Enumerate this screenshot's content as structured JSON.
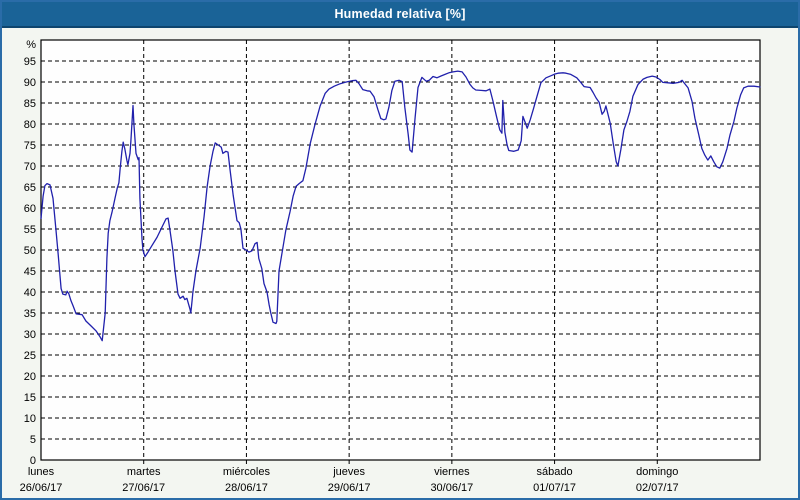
{
  "title": "Humedad relativa [%]",
  "colors": {
    "header_bg": "#1a6397",
    "header_border": "#0e456e",
    "outer_border": "#2a6ca8",
    "page_bg": "#f3f6f1",
    "plot_bg": "#fefefe",
    "grid": "#000000",
    "axis": "#000000",
    "line": "#2121ac",
    "title_text": "#ffffff",
    "label_text": "#000000"
  },
  "chart_data": {
    "type": "line",
    "title": "Humedad relativa [%]",
    "ylabel": "%",
    "ylim": [
      0,
      100
    ],
    "y_ticks": [
      0,
      5,
      10,
      15,
      20,
      25,
      30,
      35,
      40,
      45,
      50,
      55,
      60,
      65,
      70,
      75,
      80,
      85,
      90,
      95
    ],
    "grid": "dashed",
    "legend": "none",
    "x_axis": {
      "unit": "hours_from_start",
      "range": [
        0,
        168
      ],
      "hours_per_day": 24
    },
    "days": [
      {
        "name": "lunes",
        "date": "26/06/17"
      },
      {
        "name": "martes",
        "date": "27/06/17"
      },
      {
        "name": "miércoles",
        "date": "28/06/17"
      },
      {
        "name": "jueves",
        "date": "29/06/17"
      },
      {
        "name": "viernes",
        "date": "30/06/17"
      },
      {
        "name": "sábado",
        "date": "01/07/17"
      },
      {
        "name": "domingo",
        "date": "02/07/17"
      }
    ],
    "points": [
      [
        0,
        57.5
      ],
      [
        0.5,
        62.8
      ],
      [
        0.9,
        65.3
      ],
      [
        1.4,
        65.8
      ],
      [
        2.1,
        65.5
      ],
      [
        2.8,
        62.3
      ],
      [
        3.5,
        54.7
      ],
      [
        4,
        49.2
      ],
      [
        4.4,
        44.4
      ],
      [
        4.7,
        40.8
      ],
      [
        5.1,
        39.5
      ],
      [
        5.8,
        39.3
      ],
      [
        6.1,
        40.2
      ],
      [
        6.5,
        39.6
      ],
      [
        7,
        37.9
      ],
      [
        7.5,
        36.7
      ],
      [
        8.2,
        34.8
      ],
      [
        9.6,
        34.6
      ],
      [
        10.5,
        33.1
      ],
      [
        11.7,
        31.9
      ],
      [
        12.9,
        30.7
      ],
      [
        13.8,
        29.3
      ],
      [
        14.3,
        28.4
      ],
      [
        15,
        35
      ],
      [
        15.4,
        48
      ],
      [
        15.7,
        54
      ],
      [
        16.1,
        57
      ],
      [
        16.6,
        59
      ],
      [
        17.3,
        62.3
      ],
      [
        17.8,
        64.7
      ],
      [
        18.2,
        66
      ],
      [
        18.5,
        69.5
      ],
      [
        18.9,
        73.5
      ],
      [
        19.2,
        75.7
      ],
      [
        19.6,
        74
      ],
      [
        20.1,
        71.2
      ],
      [
        20.3,
        70.3
      ],
      [
        20.8,
        73
      ],
      [
        21,
        76
      ],
      [
        21.5,
        84.4
      ],
      [
        21.7,
        80
      ],
      [
        22.2,
        73
      ],
      [
        22.7,
        71.5
      ],
      [
        22.9,
        72
      ],
      [
        23.1,
        62.3
      ],
      [
        23.6,
        52.7
      ],
      [
        23.8,
        50
      ],
      [
        24.3,
        48.4
      ],
      [
        25,
        49.5
      ],
      [
        25.9,
        51
      ],
      [
        27.1,
        53
      ],
      [
        28.3,
        55.5
      ],
      [
        29.2,
        57.4
      ],
      [
        29.7,
        57.6
      ],
      [
        30.1,
        55
      ],
      [
        30.8,
        50
      ],
      [
        31.3,
        45
      ],
      [
        32,
        39.5
      ],
      [
        32.5,
        38.5
      ],
      [
        33.2,
        39
      ],
      [
        33.6,
        38.2
      ],
      [
        34.1,
        38.5
      ],
      [
        34.8,
        36
      ],
      [
        35,
        35
      ],
      [
        35.3,
        38
      ],
      [
        35.5,
        40
      ],
      [
        36.2,
        45
      ],
      [
        37.2,
        50.5
      ],
      [
        38.1,
        58
      ],
      [
        38.8,
        65
      ],
      [
        39.5,
        70
      ],
      [
        40.2,
        73.5
      ],
      [
        40.7,
        75.5
      ],
      [
        41.4,
        75
      ],
      [
        42.1,
        74.5
      ],
      [
        42.5,
        73
      ],
      [
        43.2,
        73.5
      ],
      [
        43.7,
        73.3
      ],
      [
        44.2,
        68.8
      ],
      [
        44.9,
        63
      ],
      [
        45.8,
        57
      ],
      [
        46.3,
        56.5
      ],
      [
        46.7,
        55
      ],
      [
        47.2,
        50.4
      ],
      [
        47.9,
        50
      ],
      [
        48.6,
        49.5
      ],
      [
        49.3,
        49.8
      ],
      [
        50,
        51.5
      ],
      [
        50.5,
        51.8
      ],
      [
        50.9,
        48
      ],
      [
        51.6,
        45.6
      ],
      [
        52.1,
        42
      ],
      [
        52.8,
        40
      ],
      [
        53.3,
        37
      ],
      [
        53.7,
        35
      ],
      [
        54.2,
        32.8
      ],
      [
        54.9,
        32.5
      ],
      [
        55.1,
        33
      ],
      [
        55.4,
        40
      ],
      [
        55.6,
        45
      ],
      [
        56.5,
        50.4
      ],
      [
        57.2,
        54.7
      ],
      [
        58.2,
        59.2
      ],
      [
        58.9,
        62.8
      ],
      [
        59.6,
        65.2
      ],
      [
        60.3,
        65.8
      ],
      [
        61.2,
        66.5
      ],
      [
        61.9,
        69.5
      ],
      [
        62.9,
        75.3
      ],
      [
        64,
        79.8
      ],
      [
        65.2,
        84.2
      ],
      [
        66.4,
        87.3
      ],
      [
        67.3,
        88.3
      ],
      [
        68.5,
        89
      ],
      [
        69.9,
        89.6
      ],
      [
        71,
        89.9
      ],
      [
        71.7,
        90.1
      ],
      [
        72.7,
        90.3
      ],
      [
        73.6,
        90.4
      ],
      [
        74.3,
        89.6
      ],
      [
        75.2,
        88.2
      ],
      [
        76.2,
        87.9
      ],
      [
        76.9,
        87.8
      ],
      [
        77.8,
        86.5
      ],
      [
        78.7,
        83.5
      ],
      [
        79.4,
        81.3
      ],
      [
        80.1,
        81
      ],
      [
        80.6,
        81.2
      ],
      [
        81.3,
        84
      ],
      [
        82,
        88
      ],
      [
        82.7,
        90.2
      ],
      [
        83.7,
        90.4
      ],
      [
        84.4,
        90.1
      ],
      [
        85,
        84
      ],
      [
        85.8,
        77.5
      ],
      [
        86.2,
        73.8
      ],
      [
        86.7,
        73.3
      ],
      [
        87.4,
        81.5
      ],
      [
        88.1,
        88.7
      ],
      [
        89,
        91.1
      ],
      [
        90,
        90.2
      ],
      [
        90.7,
        90.4
      ],
      [
        91.6,
        91.3
      ],
      [
        92.5,
        91
      ],
      [
        93.4,
        91.4
      ],
      [
        94.4,
        91.8
      ],
      [
        95.3,
        92.2
      ],
      [
        96.3,
        92.4
      ],
      [
        97.4,
        92.6
      ],
      [
        98.4,
        92.4
      ],
      [
        99.3,
        91.2
      ],
      [
        100.2,
        89.5
      ],
      [
        100.9,
        88.6
      ],
      [
        101.6,
        88.1
      ],
      [
        102.8,
        88
      ],
      [
        104,
        87.9
      ],
      [
        104.9,
        88.3
      ],
      [
        105.6,
        85.5
      ],
      [
        106.5,
        81.5
      ],
      [
        107.2,
        78.6
      ],
      [
        107.7,
        77.8
      ],
      [
        107.9,
        85.6
      ],
      [
        108.4,
        78
      ],
      [
        108.9,
        75
      ],
      [
        109.3,
        73.7
      ],
      [
        110.5,
        73.5
      ],
      [
        111.5,
        73.8
      ],
      [
        112.2,
        76
      ],
      [
        112.6,
        81.8
      ],
      [
        113.1,
        80.5
      ],
      [
        113.6,
        79
      ],
      [
        114.3,
        81
      ],
      [
        115,
        83.4
      ],
      [
        115.9,
        86.6
      ],
      [
        116.8,
        89.8
      ],
      [
        118,
        91
      ],
      [
        119.2,
        91.5
      ],
      [
        120.1,
        91.9
      ],
      [
        120.8,
        92.1
      ],
      [
        122,
        92.2
      ],
      [
        122.7,
        92.1
      ],
      [
        123.8,
        91.8
      ],
      [
        125.2,
        91
      ],
      [
        126.2,
        89.8
      ],
      [
        126.9,
        88.9
      ],
      [
        128.3,
        88.7
      ],
      [
        129,
        87.5
      ],
      [
        129.7,
        86.2
      ],
      [
        130.4,
        85.2
      ],
      [
        131.1,
        82.3
      ],
      [
        131.6,
        83
      ],
      [
        132,
        84.3
      ],
      [
        133,
        80.2
      ],
      [
        133.7,
        75.4
      ],
      [
        134.4,
        71
      ],
      [
        134.8,
        70
      ],
      [
        135.5,
        74
      ],
      [
        136.2,
        78.6
      ],
      [
        136.9,
        80.6
      ],
      [
        137.6,
        83
      ],
      [
        138.3,
        86.6
      ],
      [
        139.5,
        89.4
      ],
      [
        140.7,
        90.7
      ],
      [
        141.6,
        91.1
      ],
      [
        142.8,
        91.4
      ],
      [
        143.7,
        91.2
      ],
      [
        144.6,
        90.6
      ],
      [
        145.3,
        89.9
      ],
      [
        146.5,
        89.8
      ],
      [
        147.7,
        89.7
      ],
      [
        149.1,
        89.9
      ],
      [
        149.8,
        90.4
      ],
      [
        150.5,
        89.5
      ],
      [
        151.2,
        88.6
      ],
      [
        152.1,
        85.4
      ],
      [
        152.8,
        81.4
      ],
      [
        153.7,
        77.4
      ],
      [
        154.4,
        74.2
      ],
      [
        155.1,
        72.6
      ],
      [
        155.8,
        71.4
      ],
      [
        156.5,
        72.4
      ],
      [
        157.2,
        71
      ],
      [
        157.9,
        69.8
      ],
      [
        158.6,
        69.5
      ],
      [
        159.3,
        71
      ],
      [
        160.3,
        74.2
      ],
      [
        161,
        77.4
      ],
      [
        161.9,
        80.6
      ],
      [
        162.6,
        83.8
      ],
      [
        163.5,
        87
      ],
      [
        164.2,
        88.6
      ],
      [
        165.2,
        89
      ],
      [
        166.6,
        89
      ],
      [
        168,
        88.8
      ]
    ]
  }
}
